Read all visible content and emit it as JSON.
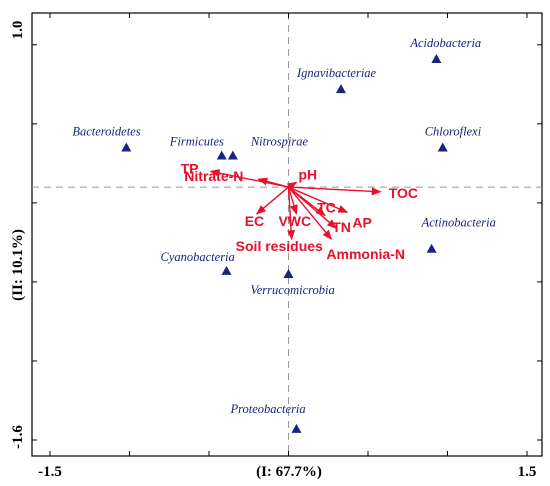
{
  "chart_data": {
    "type": "scatter",
    "subtype": "rda-biplot",
    "title": "",
    "xlabel": "(I: 67.7%)",
    "ylabel": "(II: 10.1%)",
    "xlim": [
      -1.5,
      1.5
    ],
    "ylim": [
      -1.6,
      1.0
    ],
    "x_tick_labels": [
      "-1.5",
      "1.5"
    ],
    "y_tick_labels": [
      "1.0",
      "-1.6"
    ],
    "grid": false,
    "reference_lines": "dashed lines at x=0 and y=0",
    "colors": {
      "species": "#1a237e",
      "env": "#e8102a",
      "axes": "#000000",
      "reference": "#999999"
    },
    "species": [
      {
        "name": "Acidobacteria",
        "x": 0.93,
        "y": 0.81
      },
      {
        "name": "Ignavibacteriae",
        "x": 0.33,
        "y": 0.62
      },
      {
        "name": "Bacteroidetes",
        "x": -1.02,
        "y": 0.25
      },
      {
        "name": "Firmicutes",
        "x": -0.42,
        "y": 0.2
      },
      {
        "name": "Nitrospirae",
        "x": -0.35,
        "y": 0.2
      },
      {
        "name": "Chloroflexi",
        "x": 0.97,
        "y": 0.25
      },
      {
        "name": "Actinobacteria",
        "x": 0.9,
        "y": -0.39
      },
      {
        "name": "Cyanobacteria",
        "x": -0.39,
        "y": -0.53
      },
      {
        "name": "Verrucomicrobia",
        "x": 0.0,
        "y": -0.55
      },
      {
        "name": "Proteobacteria",
        "x": 0.05,
        "y": -1.53
      }
    ],
    "env_vectors": [
      {
        "name": "TP",
        "x": -0.49,
        "y": 0.1
      },
      {
        "name": "Nitrate-N",
        "x": -0.19,
        "y": 0.05
      },
      {
        "name": "pH",
        "x": 0.05,
        "y": 0.03
      },
      {
        "name": "TOC",
        "x": 0.58,
        "y": -0.03
      },
      {
        "name": "AP",
        "x": 0.37,
        "y": -0.16
      },
      {
        "name": "TC",
        "x": 0.23,
        "y": -0.18
      },
      {
        "name": "TN",
        "x": 0.3,
        "y": -0.26
      },
      {
        "name": "EC",
        "x": -0.2,
        "y": -0.17
      },
      {
        "name": "VWC",
        "x": 0.05,
        "y": -0.17
      },
      {
        "name": "Soil residues",
        "x": 0.02,
        "y": -0.33
      },
      {
        "name": "Ammonia-N",
        "x": 0.27,
        "y": -0.33
      }
    ]
  }
}
